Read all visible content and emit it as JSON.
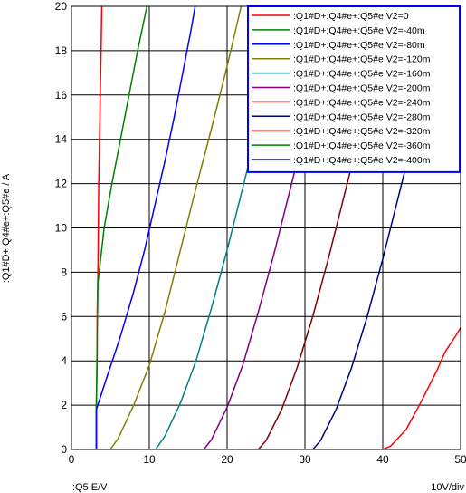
{
  "chart_data": {
    "type": "line",
    "xlabel": ":Q5  E/V",
    "ylabel": ":Q1#D+:Q4#e+:Q5#e / A",
    "scale_label": "10V/div",
    "xlim": [
      0,
      50
    ],
    "ylim": [
      0,
      20
    ],
    "x_ticks": [
      "0",
      "10",
      "20",
      "30",
      "40",
      "50"
    ],
    "y_ticks": [
      "0",
      "2",
      "4",
      "6",
      "8",
      "10",
      "12",
      "14",
      "16",
      "18",
      "20"
    ],
    "grid": true,
    "legend_position": "top-right",
    "series": [
      {
        "name": ":Q1#D+:Q4#e+:Q5#e V2=0",
        "color": "#ff0000",
        "points": [
          [
            3.2,
            0
          ],
          [
            3.2,
            2
          ],
          [
            3.3,
            4
          ],
          [
            3.3,
            6
          ],
          [
            3.4,
            8
          ],
          [
            3.45,
            10
          ],
          [
            3.5,
            12
          ],
          [
            3.6,
            14
          ],
          [
            3.7,
            16
          ],
          [
            3.8,
            18
          ],
          [
            3.9,
            20
          ]
        ]
      },
      {
        "name": ":Q1#D+:Q4#e+:Q5#e V2=-40m",
        "color": "#008000",
        "points": [
          [
            3.2,
            0
          ],
          [
            3.2,
            2
          ],
          [
            3.3,
            5
          ],
          [
            3.4,
            7.5
          ],
          [
            4.2,
            10
          ],
          [
            5.2,
            12
          ],
          [
            6.3,
            14
          ],
          [
            7.4,
            16
          ],
          [
            8.5,
            18
          ],
          [
            9.7,
            20
          ]
        ]
      },
      {
        "name": ":Q1#D+:Q4#e+:Q5#e V2=-80m",
        "color": "#0000ff",
        "points": [
          [
            3.2,
            0
          ],
          [
            3.2,
            1.8
          ],
          [
            4.3,
            3
          ],
          [
            6.2,
            5
          ],
          [
            7.9,
            7
          ],
          [
            9.4,
            9
          ],
          [
            10.7,
            11
          ],
          [
            12,
            13
          ],
          [
            13.2,
            15
          ],
          [
            14.3,
            17
          ],
          [
            15.4,
            19
          ],
          [
            15.9,
            20
          ]
        ]
      },
      {
        "name": ":Q1#D+:Q4#e+:Q5#e V2=-120m",
        "color": "#808000",
        "points": [
          [
            5,
            0
          ],
          [
            6,
            0.5
          ],
          [
            8,
            2
          ],
          [
            10,
            3.8
          ],
          [
            12,
            6.2
          ],
          [
            14,
            9
          ],
          [
            16,
            11.8
          ],
          [
            18,
            14.5
          ],
          [
            20,
            17.3
          ],
          [
            21.8,
            20
          ]
        ]
      },
      {
        "name": ":Q1#D+:Q4#e+:Q5#e V2=-160m",
        "color": "#008080",
        "points": [
          [
            10.8,
            0
          ],
          [
            12,
            0.6
          ],
          [
            14,
            2.1
          ],
          [
            16,
            4
          ],
          [
            18,
            6.4
          ],
          [
            20,
            9
          ],
          [
            22,
            11.8
          ],
          [
            24,
            14.6
          ],
          [
            26,
            17.4
          ],
          [
            27.8,
            20
          ]
        ]
      },
      {
        "name": ":Q1#D+:Q4#e+:Q5#e V2=-200m",
        "color": "#800080",
        "points": [
          [
            17,
            0
          ],
          [
            18,
            0.45
          ],
          [
            20,
            1.9
          ],
          [
            22,
            3.8
          ],
          [
            24,
            6.2
          ],
          [
            26,
            8.8
          ],
          [
            28,
            11.6
          ],
          [
            30,
            14.4
          ],
          [
            32,
            17.2
          ],
          [
            33.8,
            20
          ]
        ]
      },
      {
        "name": ":Q1#D+:Q4#e+:Q5#e V2=-240m",
        "color": "#800000",
        "points": [
          [
            24,
            0
          ],
          [
            25,
            0.4
          ],
          [
            27,
            1.8
          ],
          [
            29,
            3.7
          ],
          [
            31,
            6
          ],
          [
            33,
            8.6
          ],
          [
            35,
            11.4
          ],
          [
            37,
            14.2
          ],
          [
            39,
            17
          ],
          [
            41,
            20
          ]
        ]
      },
      {
        "name": ":Q1#D+:Q4#e+:Q5#e V2=-280m",
        "color": "#000080",
        "points": [
          [
            31,
            0
          ],
          [
            32,
            0.4
          ],
          [
            34,
            1.8
          ],
          [
            36,
            3.7
          ],
          [
            38,
            6
          ],
          [
            40,
            8.6
          ],
          [
            42,
            11.4
          ],
          [
            44,
            14.2
          ],
          [
            46,
            17
          ],
          [
            48,
            20
          ]
        ]
      },
      {
        "name": ":Q1#D+:Q4#e+:Q5#e V2=-320m",
        "color": "#ff0000",
        "points": [
          [
            40,
            0
          ],
          [
            41,
            0.15
          ],
          [
            43,
            0.9
          ],
          [
            45,
            2.2
          ],
          [
            47,
            3.6
          ],
          [
            48,
            4.4
          ],
          [
            49.5,
            5.2
          ],
          [
            50,
            5.5
          ]
        ]
      },
      {
        "name": ":Q1#D+:Q4#e+:Q5#e V2=-360m",
        "color": "#008000",
        "points": []
      },
      {
        "name": ":Q1#D+:Q4#e+:Q5#e V2=-400m",
        "color": "#0000ff",
        "points": []
      }
    ]
  }
}
